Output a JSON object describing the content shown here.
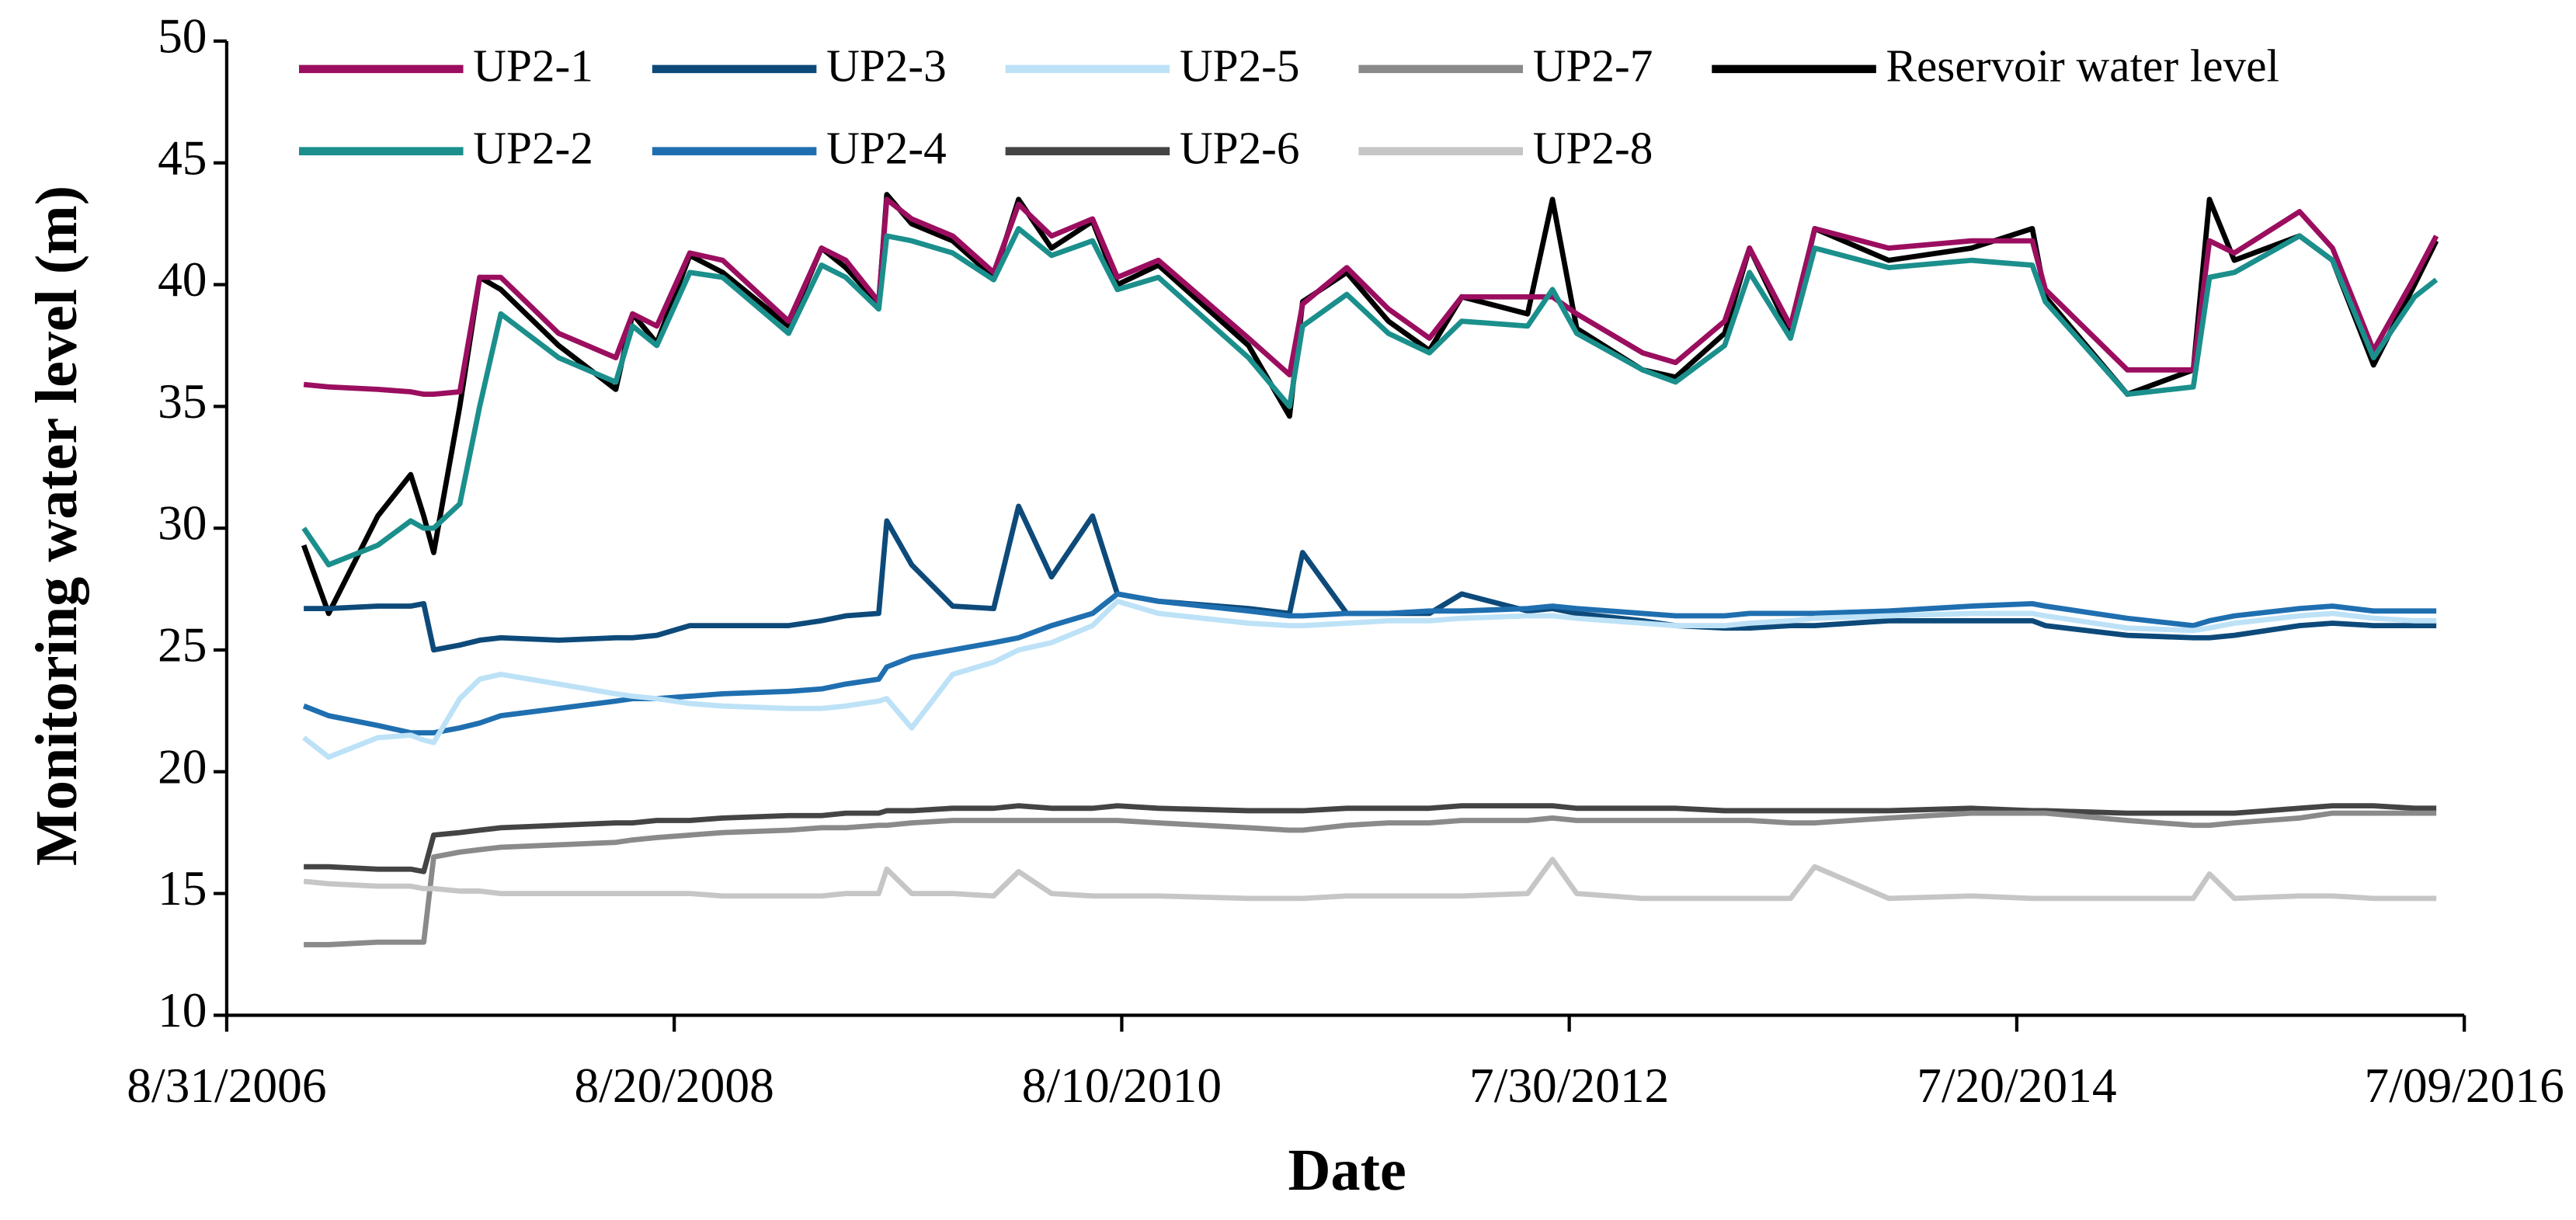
{
  "chart_data": {
    "type": "line",
    "x_label": "Date",
    "y_label": "Monitoring water level (m)",
    "x": [
      "1/2/2007",
      "2/11/2007",
      "5/1/2007",
      "6/23/2007",
      "7/14/2007",
      "7/30/2007",
      "9/10/2007",
      "10/12/2007",
      "11/15/2007",
      "2/16/2008",
      "5/18/2008",
      "6/14/2008",
      "7/23/2008",
      "9/14/2008",
      "11/6/2008",
      "2/20/2009",
      "4/14/2009",
      "5/23/2009",
      "7/15/2009",
      "7/28/2009",
      "9/6/2009",
      "11/11/2009",
      "1/16/2010",
      "2/25/2010",
      "4/19/2010",
      "6/24/2010",
      "8/3/2010",
      "10/8/2010",
      "3/2/2011",
      "5/7/2011",
      "5/28/2011",
      "8/7/2011",
      "10/13/2011",
      "12/18/2011",
      "2/8/2012",
      "5/24/2012",
      "7/3/2012",
      "8/11/2012",
      "11/25/2012",
      "1/17/2013",
      "4/6/2013",
      "5/16/2013",
      "7/21/2013",
      "8/29/2013",
      "12/26/2013",
      "5/8/2014",
      "8/14/2014",
      "9/4/2014",
      "1/14/2015",
      "4/30/2015",
      "5/26/2015",
      "7/5/2015",
      "10/18/2015",
      "12/10/2015",
      "2/14/2016",
      "4/20/2016",
      "5/25/2016"
    ],
    "xlim": [
      "8/31/2006",
      "7/09/2016"
    ],
    "xticks": [
      "8/31/2006",
      "8/20/2008",
      "8/10/2010",
      "7/30/2012",
      "7/20/2014",
      "7/09/2016"
    ],
    "ylim": [
      10,
      50
    ],
    "yticks": [
      10,
      15,
      20,
      25,
      30,
      35,
      40,
      45,
      50
    ],
    "legend": "top",
    "series": [
      {
        "name": "UP2-1",
        "color": "#9b0e5f",
        "values": [
          35.9,
          35.8,
          35.7,
          35.6,
          35.5,
          35.5,
          35.6,
          40.3,
          40.3,
          38.0,
          37.0,
          38.8,
          38.3,
          41.3,
          41.0,
          38.5,
          41.5,
          41.0,
          39.3,
          43.5,
          42.7,
          42.0,
          40.5,
          43.3,
          42.0,
          42.7,
          40.3,
          41.0,
          37.8,
          36.3,
          39.2,
          40.7,
          39.0,
          37.8,
          39.5,
          39.5,
          39.5,
          38.8,
          37.2,
          36.8,
          38.5,
          41.5,
          38.3,
          42.3,
          41.5,
          41.8,
          41.8,
          39.8,
          36.5,
          36.5,
          41.8,
          41.3,
          43.0,
          41.5,
          37.3,
          40.3,
          42.0
        ]
      },
      {
        "name": "UP2-2",
        "color": "#1b8f8c",
        "values": [
          30.0,
          28.5,
          29.3,
          30.3,
          30.0,
          30.0,
          31.0,
          35.0,
          38.8,
          37.0,
          36.0,
          38.3,
          37.5,
          40.5,
          40.3,
          38.0,
          40.8,
          40.3,
          39.0,
          42.0,
          41.8,
          41.3,
          40.2,
          42.3,
          41.2,
          41.8,
          39.8,
          40.3,
          37.0,
          35.0,
          38.3,
          39.6,
          38.0,
          37.2,
          38.5,
          38.3,
          39.8,
          38.0,
          36.5,
          36.0,
          37.5,
          40.5,
          37.8,
          41.5,
          40.7,
          41.0,
          40.8,
          39.3,
          35.5,
          35.8,
          40.3,
          40.5,
          42.0,
          41.0,
          37.0,
          39.5,
          40.2
        ]
      },
      {
        "name": "UP2-3",
        "color": "#0d4a7a",
        "values": [
          26.7,
          26.7,
          26.8,
          26.8,
          26.9,
          25.0,
          25.2,
          25.4,
          25.5,
          25.4,
          25.5,
          25.5,
          25.6,
          26.0,
          26.0,
          26.0,
          26.2,
          26.4,
          26.5,
          30.3,
          28.5,
          26.8,
          26.7,
          30.9,
          28.0,
          30.5,
          27.3,
          27.0,
          26.7,
          26.5,
          29.0,
          26.5,
          26.5,
          26.5,
          27.3,
          26.6,
          26.7,
          26.5,
          26.2,
          26.0,
          25.9,
          25.9,
          26.0,
          26.0,
          26.2,
          26.2,
          26.2,
          26.0,
          25.6,
          25.5,
          25.5,
          25.6,
          26.0,
          26.1,
          26.0,
          26.0,
          26.0
        ]
      },
      {
        "name": "UP2-4",
        "color": "#1f6fb0",
        "values": [
          22.7,
          22.3,
          21.9,
          21.6,
          21.6,
          21.6,
          21.8,
          22.0,
          22.3,
          22.6,
          22.9,
          23.0,
          23.0,
          23.1,
          23.2,
          23.3,
          23.4,
          23.6,
          23.8,
          24.3,
          24.7,
          25.0,
          25.3,
          25.5,
          26.0,
          26.5,
          27.3,
          27.0,
          26.6,
          26.4,
          26.4,
          26.5,
          26.5,
          26.6,
          26.6,
          26.7,
          26.8,
          26.7,
          26.5,
          26.4,
          26.4,
          26.5,
          26.5,
          26.5,
          26.6,
          26.8,
          26.9,
          26.8,
          26.3,
          26.0,
          26.2,
          26.4,
          26.7,
          26.8,
          26.6,
          26.6,
          26.6
        ]
      },
      {
        "name": "UP2-5",
        "color": "#bde2f7",
        "values": [
          21.4,
          20.6,
          21.4,
          21.5,
          21.3,
          21.2,
          23.0,
          23.8,
          24.0,
          23.6,
          23.2,
          23.1,
          23.0,
          22.8,
          22.7,
          22.6,
          22.6,
          22.7,
          22.9,
          23.0,
          21.8,
          24.0,
          24.5,
          25.0,
          25.3,
          26.0,
          27.0,
          26.5,
          26.1,
          26.0,
          26.0,
          26.1,
          26.2,
          26.2,
          26.3,
          26.4,
          26.4,
          26.3,
          26.1,
          26.0,
          26.0,
          26.1,
          26.2,
          26.3,
          26.4,
          26.5,
          26.5,
          26.4,
          25.9,
          25.8,
          25.9,
          26.1,
          26.4,
          26.5,
          26.3,
          26.2,
          26.2
        ]
      },
      {
        "name": "UP2-6",
        "color": "#444444",
        "values": [
          16.1,
          16.1,
          16.0,
          16.0,
          15.9,
          17.4,
          17.5,
          17.6,
          17.7,
          17.8,
          17.9,
          17.9,
          18.0,
          18.0,
          18.1,
          18.2,
          18.2,
          18.3,
          18.3,
          18.4,
          18.4,
          18.5,
          18.5,
          18.6,
          18.5,
          18.5,
          18.6,
          18.5,
          18.4,
          18.4,
          18.4,
          18.5,
          18.5,
          18.5,
          18.6,
          18.6,
          18.6,
          18.5,
          18.5,
          18.5,
          18.4,
          18.4,
          18.4,
          18.4,
          18.4,
          18.5,
          18.4,
          18.4,
          18.3,
          18.3,
          18.3,
          18.3,
          18.5,
          18.6,
          18.6,
          18.5,
          18.5
        ]
      },
      {
        "name": "UP2-7",
        "color": "#8a8a8a",
        "values": [
          12.9,
          12.9,
          13.0,
          13.0,
          13.0,
          16.5,
          16.7,
          16.8,
          16.9,
          17.0,
          17.1,
          17.2,
          17.3,
          17.4,
          17.5,
          17.6,
          17.7,
          17.7,
          17.8,
          17.8,
          17.9,
          18.0,
          18.0,
          18.0,
          18.0,
          18.0,
          18.0,
          17.9,
          17.7,
          17.6,
          17.6,
          17.8,
          17.9,
          17.9,
          18.0,
          18.0,
          18.1,
          18.0,
          18.0,
          18.0,
          18.0,
          18.0,
          17.9,
          17.9,
          18.1,
          18.3,
          18.3,
          18.3,
          18.0,
          17.8,
          17.8,
          17.9,
          18.1,
          18.3,
          18.3,
          18.3,
          18.3
        ]
      },
      {
        "name": "UP2-8",
        "color": "#c6c6c6",
        "values": [
          15.5,
          15.4,
          15.3,
          15.3,
          15.2,
          15.2,
          15.1,
          15.1,
          15.0,
          15.0,
          15.0,
          15.0,
          15.0,
          15.0,
          14.9,
          14.9,
          14.9,
          15.0,
          15.0,
          16.0,
          15.0,
          15.0,
          14.9,
          15.9,
          15.0,
          14.9,
          14.9,
          14.9,
          14.8,
          14.8,
          14.8,
          14.9,
          14.9,
          14.9,
          14.9,
          15.0,
          16.4,
          15.0,
          14.8,
          14.8,
          14.8,
          14.8,
          14.8,
          16.1,
          14.8,
          14.9,
          14.8,
          14.8,
          14.8,
          14.8,
          15.8,
          14.8,
          14.9,
          14.9,
          14.8,
          14.8,
          14.8
        ]
      },
      {
        "name": "Reservoir water level",
        "color": "#000000",
        "values": [
          29.3,
          26.5,
          30.5,
          32.2,
          30.5,
          29.0,
          35.0,
          40.3,
          39.8,
          37.5,
          35.7,
          38.8,
          37.6,
          41.2,
          40.5,
          38.3,
          41.5,
          40.7,
          39.2,
          43.7,
          42.5,
          41.8,
          40.3,
          43.5,
          41.5,
          42.6,
          40.0,
          40.8,
          37.5,
          34.6,
          39.3,
          40.5,
          38.5,
          37.3,
          39.5,
          38.8,
          43.5,
          38.2,
          36.5,
          36.2,
          38.0,
          41.5,
          38.0,
          42.3,
          41.0,
          41.5,
          42.3,
          39.5,
          35.5,
          36.5,
          43.5,
          41.0,
          42.0,
          41.0,
          36.7,
          40.0,
          41.8
        ]
      }
    ]
  }
}
